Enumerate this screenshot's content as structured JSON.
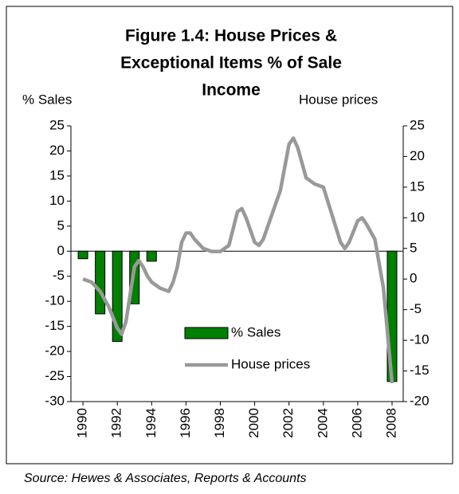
{
  "chart_data": {
    "type": "bar+line",
    "title": [
      "Figure 1.4: House Prices &",
      "Exceptional Items % of Sale",
      "Income"
    ],
    "ylabel": "% Sales",
    "y2label": "House prices",
    "source": "Source: Hewes & Associates, Reports & Accounts",
    "xlim": [
      1989.3,
      2008.65
    ],
    "xticks": [
      1990,
      1992,
      1994,
      1996,
      1998,
      2000,
      2002,
      2004,
      2006,
      2008
    ],
    "ylim": [
      -30,
      25
    ],
    "yticks": [
      -30,
      -25,
      -20,
      -15,
      -10,
      -5,
      0,
      5,
      10,
      15,
      20,
      25
    ],
    "y2lim": [
      -20,
      25
    ],
    "y2ticks": [
      -20,
      -15,
      -10,
      -5,
      0,
      5,
      10,
      15,
      20,
      25
    ],
    "legend": "lower center",
    "series": [
      {
        "name": "% Sales",
        "type": "bar",
        "color": "#008000",
        "x": [
          1990,
          1991,
          1992,
          1993,
          1994,
          2008
        ],
        "values": [
          -1.5,
          -12.5,
          -18,
          -10.5,
          -2,
          -26
        ]
      },
      {
        "name": "House prices",
        "type": "line",
        "axis": "y2",
        "color": "#999999",
        "x": [
          1990,
          1990.5,
          1991,
          1991.5,
          1992,
          1992.25,
          1992.5,
          1992.75,
          1993,
          1993.25,
          1993.5,
          1993.75,
          1994,
          1994.5,
          1995,
          1995.25,
          1995.5,
          1995.75,
          1996,
          1996.25,
          1996.5,
          1997,
          1997.5,
          1998,
          1998.5,
          1999,
          1999.25,
          1999.5,
          2000,
          2000.25,
          2000.5,
          2001,
          2001.5,
          2002,
          2002.25,
          2002.5,
          2003,
          2003.5,
          2004,
          2004.5,
          2005,
          2005.25,
          2005.5,
          2006,
          2006.25,
          2006.5,
          2007,
          2007.5,
          2008
        ],
        "values": [
          0,
          -0.5,
          -2,
          -4.5,
          -8,
          -9,
          -7,
          -2.5,
          2,
          3,
          2,
          0.5,
          -0.5,
          -1.5,
          -2,
          -0.5,
          2,
          6,
          7.5,
          7.5,
          6.5,
          5,
          4.5,
          4.5,
          5.5,
          11,
          11.5,
          10,
          6,
          5.5,
          6.5,
          10.5,
          14.5,
          22,
          23,
          21.5,
          16.5,
          15.5,
          15,
          10.5,
          6,
          5,
          6,
          9.5,
          10,
          9,
          6.5,
          -1.5,
          -17
        ]
      }
    ]
  }
}
